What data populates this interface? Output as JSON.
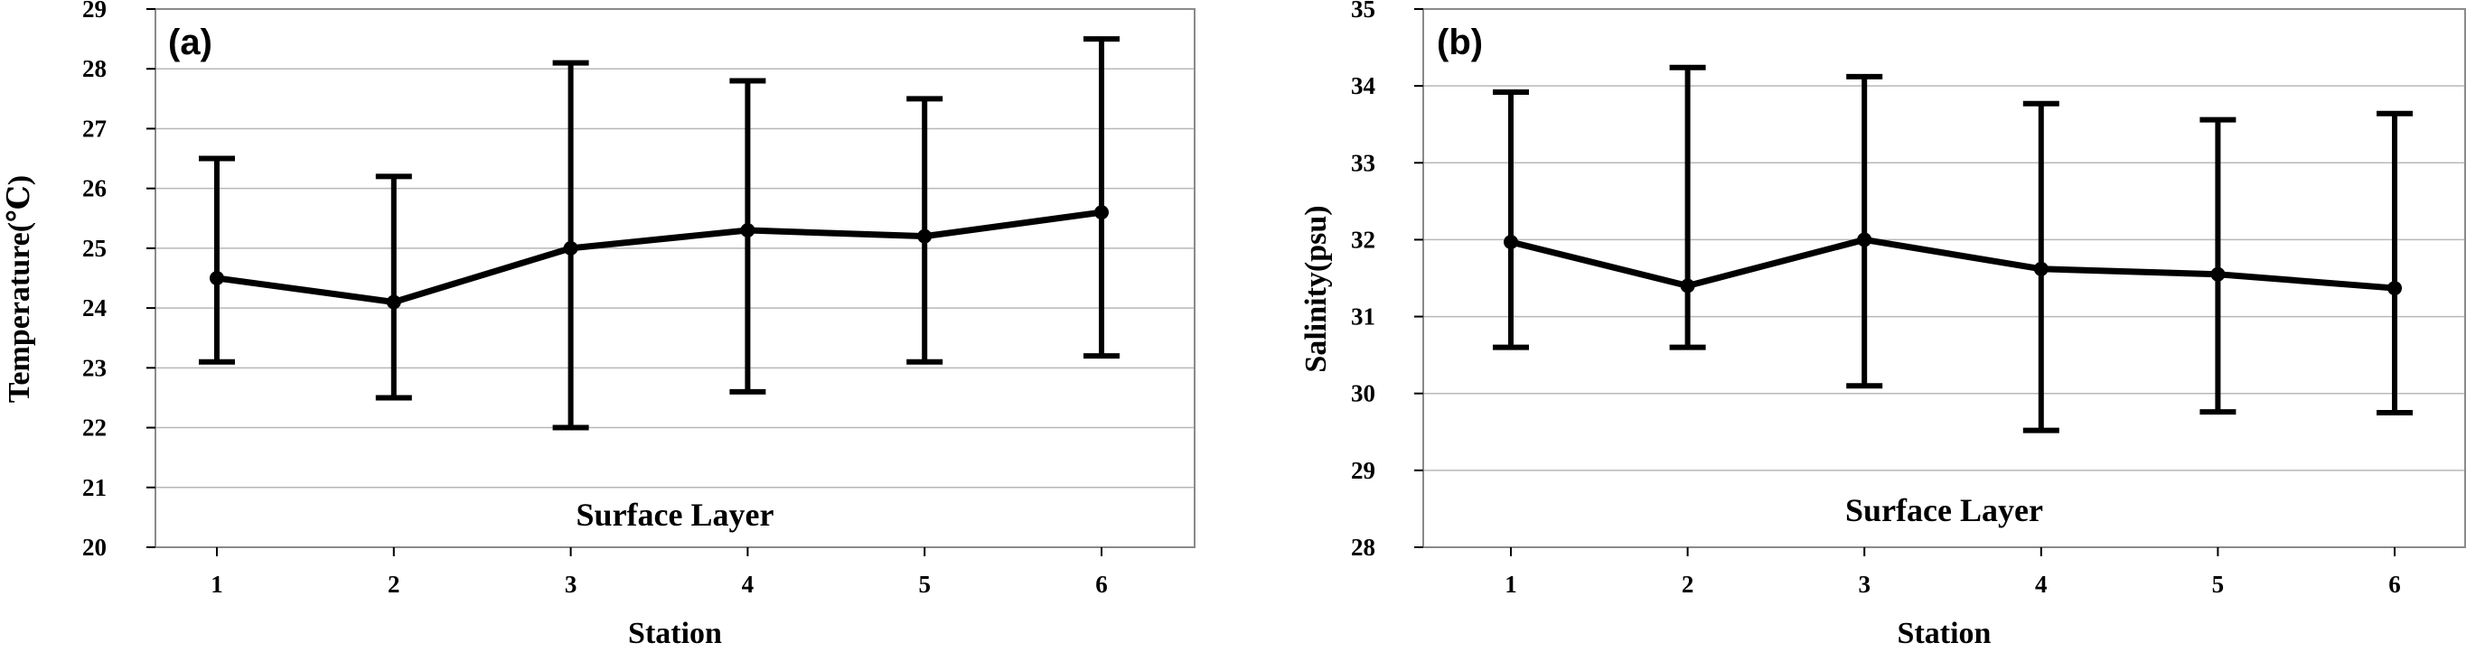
{
  "chart_data": [
    {
      "type": "line",
      "panel_label": "(a)",
      "inset_label": "Surface Layer",
      "xlabel": "Station",
      "ylabel": "Temperature(℃)",
      "x": [
        1,
        2,
        3,
        4,
        5,
        6
      ],
      "ylim": [
        20,
        29
      ],
      "yticks": [
        20,
        21,
        22,
        23,
        24,
        25,
        26,
        27,
        28,
        29
      ],
      "grid": true,
      "series": [
        {
          "values": [
            24.5,
            24.1,
            25.0,
            25.3,
            25.2,
            25.6
          ],
          "error_upper": [
            26.5,
            26.2,
            28.1,
            27.8,
            27.5,
            28.5
          ],
          "error_lower": [
            23.1,
            22.5,
            22.0,
            22.6,
            23.1,
            23.2
          ],
          "color": "#000000"
        }
      ]
    },
    {
      "type": "line",
      "panel_label": "(b)",
      "inset_label": "Surface Layer",
      "xlabel": "Station",
      "ylabel": "Salinity(psu)",
      "x": [
        1,
        2,
        3,
        4,
        5,
        6
      ],
      "ylim": [
        28,
        35
      ],
      "yticks": [
        28,
        29,
        30,
        31,
        32,
        33,
        34,
        35
      ],
      "grid": true,
      "series": [
        {
          "values": [
            31.97,
            31.4,
            32.0,
            31.62,
            31.55,
            31.37
          ],
          "error_upper": [
            33.92,
            34.24,
            34.12,
            33.77,
            33.56,
            33.64
          ],
          "error_lower": [
            30.6,
            30.6,
            30.1,
            29.52,
            29.76,
            29.75
          ],
          "color": "#000000"
        }
      ]
    }
  ]
}
